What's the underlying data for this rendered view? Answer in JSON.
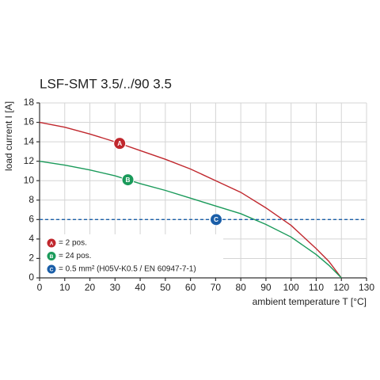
{
  "chart_data": {
    "type": "line",
    "title": "LSF-SMT 3.5/../90 3.5",
    "y_label": "load current I [A]",
    "x_label": "ambient temperature T [°C]",
    "xlim": [
      0,
      130
    ],
    "xticks": [
      0,
      10,
      20,
      30,
      40,
      50,
      60,
      70,
      80,
      90,
      100,
      110,
      120,
      130
    ],
    "ylim": [
      0,
      18
    ],
    "yticks": [
      0,
      2,
      4,
      6,
      8,
      10,
      12,
      14,
      16,
      18
    ],
    "grid": true,
    "series": [
      {
        "name": "= 2 pos.",
        "marker": "A",
        "color": "#c0272d",
        "dashed": false,
        "x": [
          0,
          10,
          20,
          30,
          40,
          50,
          60,
          70,
          80,
          90,
          100,
          110,
          115,
          120
        ],
        "values": [
          16,
          15.5,
          14.8,
          14.0,
          13.1,
          12.2,
          11.2,
          10.0,
          8.8,
          7.2,
          5.4,
          3.0,
          1.7,
          0
        ]
      },
      {
        "name": "= 24 pos.",
        "marker": "B",
        "color": "#1a9a5a",
        "dashed": false,
        "x": [
          0,
          10,
          20,
          30,
          40,
          50,
          60,
          70,
          80,
          90,
          100,
          110,
          115,
          120
        ],
        "values": [
          12,
          11.6,
          11.1,
          10.5,
          9.7,
          9.0,
          8.2,
          7.4,
          6.6,
          5.5,
          4.2,
          2.4,
          1.3,
          0
        ]
      },
      {
        "name": "= 0.5 mm² (H05V-K0.5 / EN 60947-7-1)",
        "marker": "C",
        "color": "#1a5ea8",
        "dashed": true,
        "x": [
          0,
          130
        ],
        "values": [
          6,
          6
        ]
      }
    ]
  }
}
